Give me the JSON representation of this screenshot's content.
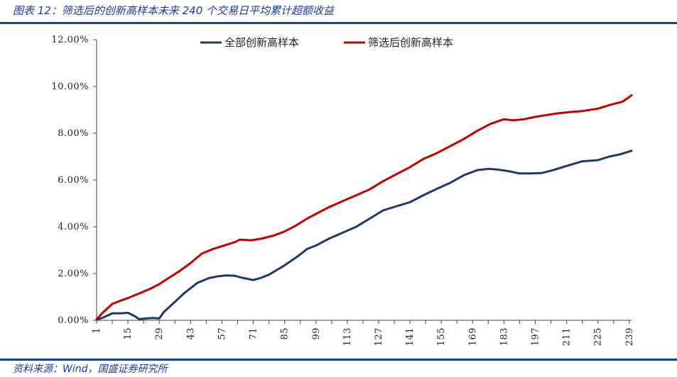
{
  "header": {
    "title": "图表 12：筛选后的创新高样本未来 240 个交易日平均累计超额收益"
  },
  "footer": {
    "source": "资料来源：Wind，国盛证券研究所"
  },
  "colors": {
    "accent": "#1f3a93",
    "series_all": "#1f3864",
    "series_filtered": "#c00000"
  },
  "chart_data": {
    "type": "line",
    "title": "",
    "xlabel": "",
    "ylabel": "",
    "x_ticks": [
      1,
      15,
      29,
      43,
      57,
      71,
      85,
      99,
      113,
      127,
      141,
      155,
      169,
      183,
      197,
      211,
      225,
      239
    ],
    "xlim": [
      1,
      240
    ],
    "ylim": [
      0,
      12
    ],
    "y_ticks": [
      "0.00%",
      "2.00%",
      "4.00%",
      "6.00%",
      "8.00%",
      "10.00%",
      "12.00%"
    ],
    "y_unit": "%",
    "legend_position": "top",
    "grid": false,
    "series": [
      {
        "name": "全部创新高样本",
        "color": "#1f3864",
        "x": [
          1,
          4,
          8,
          12,
          15,
          18,
          20,
          23,
          26,
          29,
          31,
          35,
          40,
          46,
          51,
          55,
          59,
          63,
          66,
          71,
          74,
          78,
          85,
          91,
          95,
          99,
          105,
          111,
          117,
          123,
          129,
          135,
          141,
          147,
          153,
          159,
          165,
          171,
          176,
          180,
          185,
          190,
          195,
          200,
          205,
          211,
          218,
          225,
          230,
          235,
          240
        ],
        "y": [
          0.02,
          0.12,
          0.3,
          0.3,
          0.32,
          0.18,
          0.05,
          0.08,
          0.1,
          0.08,
          0.35,
          0.7,
          1.15,
          1.6,
          1.8,
          1.88,
          1.92,
          1.9,
          1.82,
          1.72,
          1.8,
          1.95,
          2.35,
          2.75,
          3.05,
          3.2,
          3.5,
          3.75,
          4.0,
          4.35,
          4.7,
          4.88,
          5.05,
          5.35,
          5.62,
          5.88,
          6.2,
          6.42,
          6.48,
          6.45,
          6.38,
          6.28,
          6.28,
          6.3,
          6.42,
          6.6,
          6.8,
          6.85,
          7.0,
          7.1,
          7.25
        ]
      },
      {
        "name": "筛选后创新高样本",
        "color": "#c00000",
        "x": [
          1,
          4,
          8,
          12,
          15,
          20,
          25,
          29,
          33,
          38,
          43,
          48,
          53,
          58,
          63,
          65,
          70,
          75,
          80,
          85,
          90,
          95,
          100,
          105,
          111,
          117,
          123,
          129,
          135,
          141,
          147,
          153,
          159,
          165,
          171,
          177,
          183,
          187,
          192,
          197,
          202,
          207,
          212,
          218,
          225,
          230,
          236,
          240
        ],
        "y": [
          0.05,
          0.35,
          0.7,
          0.85,
          0.95,
          1.15,
          1.35,
          1.55,
          1.8,
          2.1,
          2.45,
          2.85,
          3.05,
          3.2,
          3.35,
          3.45,
          3.42,
          3.5,
          3.62,
          3.8,
          4.05,
          4.35,
          4.6,
          4.85,
          5.1,
          5.35,
          5.6,
          5.95,
          6.25,
          6.55,
          6.9,
          7.15,
          7.45,
          7.75,
          8.1,
          8.4,
          8.6,
          8.55,
          8.6,
          8.7,
          8.78,
          8.85,
          8.9,
          8.95,
          9.05,
          9.2,
          9.35,
          9.62
        ]
      }
    ]
  }
}
